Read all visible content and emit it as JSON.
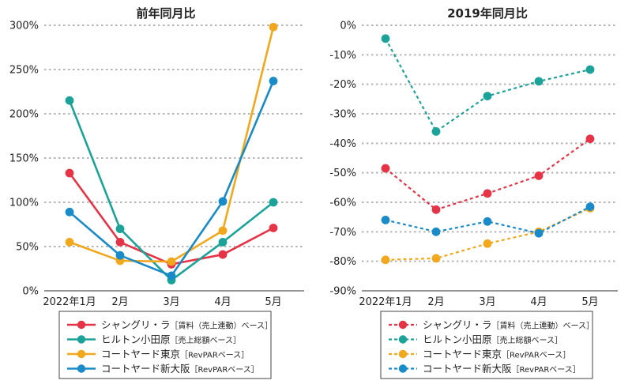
{
  "chart_data": [
    {
      "type": "line",
      "title": "前年同月比",
      "categories": [
        "2022年1月",
        "2月",
        "3月",
        "4月",
        "5月"
      ],
      "yticks": [
        "0%",
        "50%",
        "100%",
        "150%",
        "200%",
        "250%",
        "300%"
      ],
      "ylim": [
        0,
        300
      ],
      "grid": true,
      "line_style": "solid",
      "series": [
        {
          "name": "シャングリ・ラ",
          "note": "［賃料（売上連動）ベース］",
          "color": "#e63346",
          "values": [
            133,
            55,
            30,
            41,
            71
          ]
        },
        {
          "name": "ヒルトン小田原",
          "note": "［売上総額ベース］",
          "color": "#1ba39a",
          "values": [
            215,
            70,
            12,
            55,
            100
          ]
        },
        {
          "name": "コートヤード東京",
          "note": "［RevPARベース］",
          "color": "#f2a81d",
          "values": [
            55,
            34,
            33,
            68,
            298
          ]
        },
        {
          "name": "コートヤード新大阪",
          "note": "［RevPARベース］",
          "color": "#1a8bc9",
          "values": [
            89,
            40,
            17,
            101,
            237
          ]
        }
      ]
    },
    {
      "type": "line",
      "title": "2019年同月比",
      "categories": [
        "2022年1月",
        "2月",
        "3月",
        "4月",
        "5月"
      ],
      "yticks": [
        "-90%",
        "-80%",
        "-70%",
        "-60%",
        "-50%",
        "-40%",
        "-30%",
        "-20%",
        "-10%",
        "0%"
      ],
      "ylim": [
        -90,
        0
      ],
      "grid": true,
      "line_style": "dashed",
      "series": [
        {
          "name": "シャングリ・ラ",
          "note": "［賃料（売上連動）ベース］",
          "color": "#e63346",
          "values": [
            -48.5,
            -62.5,
            -57,
            -51,
            -38.5
          ]
        },
        {
          "name": "ヒルトン小田原",
          "note": "［売上総額ベース］",
          "color": "#1ba39a",
          "values": [
            -4.5,
            -36,
            -24,
            -19,
            -15
          ]
        },
        {
          "name": "コートヤード東京",
          "note": "［RevPARベース］",
          "color": "#f2a81d",
          "values": [
            -79.5,
            -79,
            -74,
            -70,
            -62
          ]
        },
        {
          "name": "コートヤード新大阪",
          "note": "［RevPARベース］",
          "color": "#1a8bc9",
          "values": [
            -66,
            -70,
            -66.5,
            -70.5,
            -61.5
          ]
        }
      ]
    }
  ]
}
